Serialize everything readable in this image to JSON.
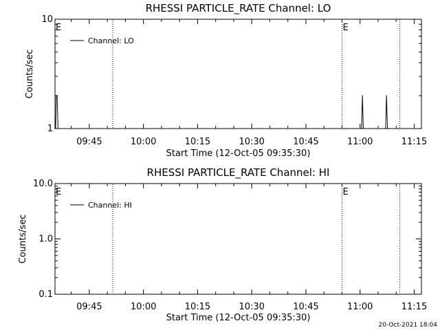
{
  "footer_timestamp": "20-Oct-2021 18:04",
  "colors": {
    "background": "#ffffff",
    "foreground": "#000000"
  },
  "chart_data": [
    {
      "type": "line",
      "title": "RHESSI PARTICLE_RATE Channel: LO",
      "xlabel": "Start Time (12-Oct-05 09:35:30)",
      "ylabel": "Counts/sec",
      "yscale": "log",
      "ylim": [
        1,
        10
      ],
      "yticks": [
        1,
        10
      ],
      "ytick_labels": [
        "1",
        "10"
      ],
      "xlim": [
        "09:35:30",
        "11:17:00"
      ],
      "xticks": [
        "09:45",
        "10:00",
        "10:15",
        "10:30",
        "10:45",
        "11:00",
        "11:15"
      ],
      "legend": {
        "label": "Channel: LO",
        "position": "top-left"
      },
      "grid": false,
      "event_lines": [
        "09:51:30",
        "10:55:00",
        "11:11:00"
      ],
      "event_markers": [
        {
          "label": "E",
          "x": "09:35:30"
        },
        {
          "label": "E",
          "x": "10:55:00"
        }
      ],
      "series": [
        {
          "name": "Channel: LO",
          "points": [
            [
              "09:35:30",
              1
            ],
            [
              "09:35:40",
              1
            ],
            [
              "09:35:50",
              2
            ],
            [
              "09:36:05",
              2
            ],
            [
              "09:36:20",
              1
            ],
            [
              "11:00:10",
              1
            ],
            [
              "11:00:25",
              1
            ],
            [
              "11:00:40",
              2
            ],
            [
              "11:00:55",
              1
            ],
            [
              "11:01:10",
              1
            ],
            [
              "11:06:50",
              1
            ],
            [
              "11:07:05",
              1
            ],
            [
              "11:07:20",
              2
            ],
            [
              "11:07:35",
              1
            ],
            [
              "11:07:50",
              1
            ]
          ]
        }
      ]
    },
    {
      "type": "line",
      "title": "RHESSI PARTICLE_RATE Channel: HI",
      "xlabel": "Start Time (12-Oct-05 09:35:30)",
      "ylabel": "Counts/sec",
      "yscale": "log",
      "ylim": [
        0.1,
        10
      ],
      "yticks": [
        0.1,
        1,
        10
      ],
      "ytick_labels": [
        "0.1",
        "1.0",
        "10.0"
      ],
      "xlim": [
        "09:35:30",
        "11:17:00"
      ],
      "xticks": [
        "09:45",
        "10:00",
        "10:15",
        "10:30",
        "10:45",
        "11:00",
        "11:15"
      ],
      "legend": {
        "label": "Channel: HI",
        "position": "top-left"
      },
      "grid": false,
      "event_lines": [
        "09:51:30",
        "10:55:00",
        "11:11:00"
      ],
      "event_markers": [
        {
          "label": "E",
          "x": "09:35:30"
        },
        {
          "label": "E",
          "x": "10:55:00"
        }
      ],
      "series": [
        {
          "name": "Channel: HI",
          "points": []
        }
      ]
    }
  ]
}
